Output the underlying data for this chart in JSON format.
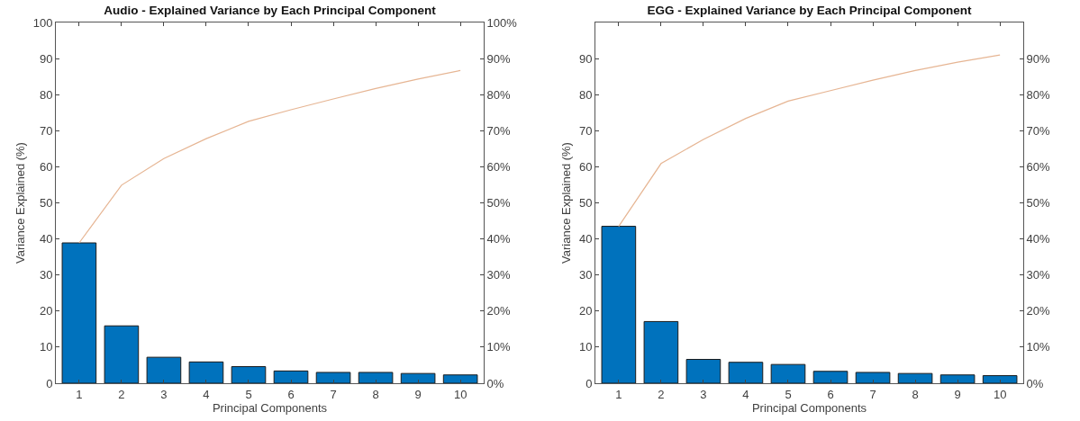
{
  "chart_data": [
    {
      "type": "bar",
      "title": "Audio - Explained Variance by Each Principal Component",
      "xlabel": "Principal Components",
      "ylabel": "Variance Explained (%)",
      "categories": [
        "1",
        "2",
        "3",
        "4",
        "5",
        "6",
        "7",
        "8",
        "9",
        "10"
      ],
      "series": [
        {
          "color": "#0072bd",
          "values": [
            38.9,
            15.9,
            7.2,
            5.9,
            4.6,
            3.4,
            3.0,
            3.0,
            2.7,
            2.3
          ]
        },
        {
          "type": "line",
          "axis": "y2",
          "color": "#e6b593",
          "values": [
            38.9,
            54.9,
            62.3,
            67.8,
            72.6,
            75.8,
            78.8,
            81.7,
            84.3,
            86.7
          ]
        }
      ],
      "ylim": [
        0,
        100
      ],
      "yticks": [
        0,
        10,
        20,
        30,
        40,
        50,
        60,
        70,
        80,
        90,
        100
      ],
      "y2lim": [
        0,
        100
      ],
      "y2ticks": [
        {
          "value": 0,
          "label": "0%"
        },
        {
          "value": 10,
          "label": "10%"
        },
        {
          "value": 20,
          "label": "20%"
        },
        {
          "value": 30,
          "label": "30%"
        },
        {
          "value": 40,
          "label": "40%"
        },
        {
          "value": 50,
          "label": "50%"
        },
        {
          "value": 60,
          "label": "60%"
        },
        {
          "value": 70,
          "label": "70%"
        },
        {
          "value": 80,
          "label": "80%"
        },
        {
          "value": 90,
          "label": "90%"
        },
        {
          "value": 100,
          "label": "100%"
        }
      ],
      "grid": false,
      "legend": false,
      "marker": "none",
      "line_style": "solid"
    },
    {
      "type": "bar",
      "title": "EGG - Explained Variance by Each Principal Component",
      "xlabel": "Principal Components",
      "ylabel": "Variance Explained (%)",
      "categories": [
        "1",
        "2",
        "3",
        "4",
        "5",
        "6",
        "7",
        "8",
        "9",
        "10"
      ],
      "series": [
        {
          "color": "#0072bd",
          "values": [
            43.5,
            17.1,
            6.6,
            5.8,
            5.2,
            3.3,
            3.0,
            2.7,
            2.3,
            2.1
          ]
        },
        {
          "type": "line",
          "axis": "y2",
          "color": "#e6b593",
          "values": [
            43.5,
            60.9,
            67.6,
            73.4,
            78.2,
            81.1,
            84.0,
            86.7,
            89.0,
            91.0
          ]
        }
      ],
      "ylim": [
        0,
        100
      ],
      "yticks": [
        0,
        10,
        20,
        30,
        40,
        50,
        60,
        70,
        80,
        90
      ],
      "y2lim": [
        0,
        100
      ],
      "y2ticks": [
        {
          "value": 0,
          "label": "0%"
        },
        {
          "value": 10,
          "label": "10%"
        },
        {
          "value": 20,
          "label": "20%"
        },
        {
          "value": 30,
          "label": "30%"
        },
        {
          "value": 40,
          "label": "40%"
        },
        {
          "value": 50,
          "label": "50%"
        },
        {
          "value": 60,
          "label": "60%"
        },
        {
          "value": 70,
          "label": "70%"
        },
        {
          "value": 80,
          "label": "80%"
        },
        {
          "value": 90,
          "label": "90%"
        }
      ],
      "grid": false,
      "legend": false,
      "marker": "none",
      "line_style": "solid"
    }
  ]
}
